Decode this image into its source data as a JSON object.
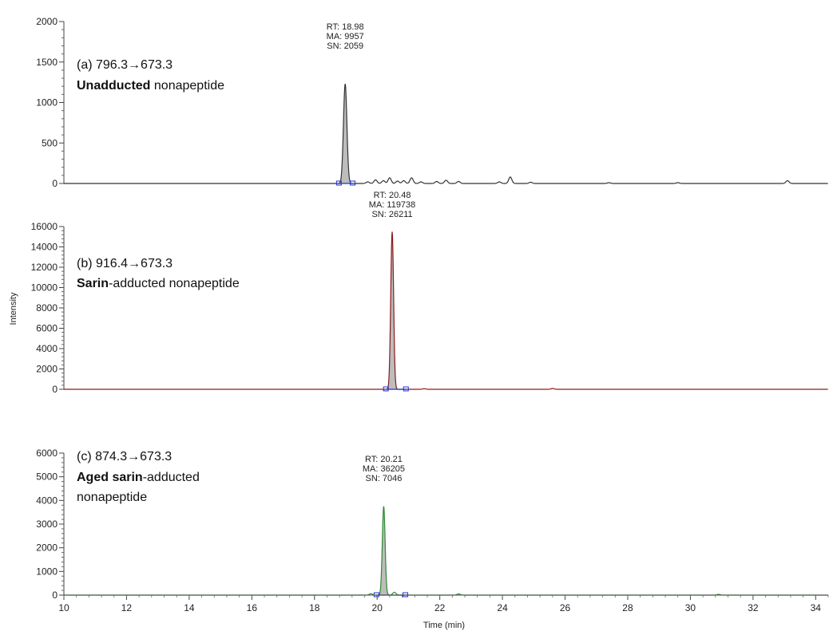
{
  "chart_data": {
    "type": "line",
    "xlabel": "Time (min)",
    "ylabel": "Intensity",
    "xlim": [
      10,
      34.4
    ],
    "x_ticks": [
      10,
      12,
      14,
      16,
      18,
      20,
      22,
      24,
      26,
      28,
      30,
      32,
      34
    ],
    "panels": [
      {
        "id": "a",
        "transition": "(a) 796.3→673.3",
        "label_bold": "Unadducted",
        "label_rest": " nonapeptide",
        "label_line2": "",
        "color": "#333333",
        "ylim": [
          0,
          2000
        ],
        "y_ticks": [
          0,
          500,
          1000,
          1500,
          2000
        ],
        "peak": {
          "x": 18.98,
          "y": 1230,
          "sigma": 0.055,
          "start": 18.78,
          "end": 19.22
        },
        "annotation": [
          "RT: 18.98",
          "MA: 9957",
          "SN: 2059"
        ],
        "noise": [
          [
            19.7,
            20
          ],
          [
            19.95,
            45
          ],
          [
            20.2,
            35
          ],
          [
            20.4,
            70
          ],
          [
            20.65,
            30
          ],
          [
            20.85,
            35
          ],
          [
            21.1,
            70
          ],
          [
            21.4,
            20
          ],
          [
            21.9,
            25
          ],
          [
            22.2,
            40
          ],
          [
            22.6,
            25
          ],
          [
            23.9,
            20
          ],
          [
            24.25,
            80
          ],
          [
            24.9,
            15
          ],
          [
            27.4,
            10
          ],
          [
            29.6,
            10
          ],
          [
            33.1,
            35
          ]
        ]
      },
      {
        "id": "b",
        "transition": "(b) 916.4→673.3",
        "label_bold": "Sarin",
        "label_rest": "-adducted nonapeptide",
        "label_line2": "",
        "color": "#8b1a1a",
        "ylim": [
          0,
          16000
        ],
        "y_ticks": [
          0,
          2000,
          4000,
          6000,
          8000,
          10000,
          12000,
          14000,
          16000
        ],
        "peak": {
          "x": 20.48,
          "y": 15500,
          "sigma": 0.045,
          "start": 20.28,
          "end": 20.92
        },
        "annotation": [
          "RT: 20.48",
          "MA: 119738",
          "SN: 26211"
        ],
        "noise": [
          [
            21.5,
            60
          ],
          [
            25.6,
            80
          ]
        ]
      },
      {
        "id": "c",
        "transition": "(c) 874.3→673.3",
        "label_bold": "Aged sarin",
        "label_rest": "-adducted",
        "label_line2": "nonapeptide",
        "color": "#2e8b2e",
        "ylim": [
          0,
          6000
        ],
        "y_ticks": [
          0,
          1000,
          2000,
          3000,
          4000,
          5000,
          6000
        ],
        "peak": {
          "x": 20.21,
          "y": 3750,
          "sigma": 0.045,
          "start": 19.98,
          "end": 20.9
        },
        "annotation": [
          "RT: 20.21",
          "MA: 36205",
          "SN: 7046"
        ],
        "noise": [
          [
            19.8,
            60
          ],
          [
            20.55,
            120
          ],
          [
            22.6,
            50
          ],
          [
            30.9,
            30
          ]
        ]
      }
    ]
  }
}
